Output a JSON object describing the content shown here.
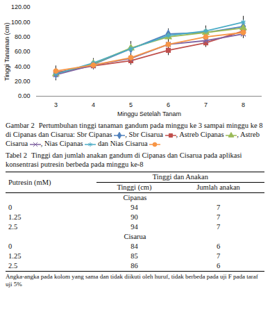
{
  "chart_data": {
    "type": "line",
    "x_label": "Minggu Setelah Tanam",
    "y_label": "Tinggi Tanaman (cm)",
    "categories": [
      3,
      4,
      5,
      6,
      7,
      8
    ],
    "ylim": [
      0,
      120
    ],
    "yticks": [
      {
        "value": 0,
        "label": "0.00"
      },
      {
        "value": 20,
        "label": "20.00"
      },
      {
        "value": 40,
        "label": "40.00"
      },
      {
        "value": 60,
        "label": "60.00"
      },
      {
        "value": 80,
        "label": "80.00"
      },
      {
        "value": 100,
        "label": "100.00"
      },
      {
        "value": 120,
        "label": "120.00"
      }
    ],
    "grid": false,
    "series": [
      {
        "name": "Sbr Cipanas",
        "color": "#4f81bd",
        "marker": "diamond",
        "values": [
          30,
          43,
          64,
          84,
          86,
          94
        ],
        "errors": [
          8,
          6,
          8,
          7,
          7,
          7
        ]
      },
      {
        "name": "Sbr Cisarua",
        "color": "#c0504d",
        "marker": "square",
        "values": [
          32,
          41,
          48,
          62,
          72,
          88
        ],
        "errors": [
          7,
          5,
          6,
          7,
          6,
          6
        ]
      },
      {
        "name": "Astreb Cipanas",
        "color": "#9bbb59",
        "marker": "triangle",
        "values": [
          30,
          44,
          65,
          80,
          86,
          92
        ],
        "errors": [
          7,
          6,
          9,
          8,
          7,
          7
        ]
      },
      {
        "name": "Astreb Cisarua",
        "color": "#8064a2",
        "marker": "times",
        "values": [
          29,
          42,
          51,
          70,
          75,
          84
        ],
        "errors": [
          8,
          6,
          6,
          7,
          6,
          6
        ]
      },
      {
        "name": "Nias Cipanas",
        "color": "#4bacc6",
        "marker": "asterisk",
        "values": [
          30,
          45,
          64,
          82,
          88,
          100
        ],
        "errors": [
          8,
          6,
          8,
          8,
          7,
          8
        ]
      },
      {
        "name": "Nias Cisarua",
        "color": "#f79646",
        "marker": "circle",
        "values": [
          34,
          42,
          52,
          70,
          80,
          86
        ],
        "errors": [
          7,
          5,
          6,
          7,
          6,
          6
        ]
      }
    ]
  },
  "figure_caption": {
    "label": "Gambar 2",
    "text": "Pertumbuhan tinggi tanaman gandum pada minggu ke 3 sampai minggu ke 8 di Cipanas dan Cisarua:",
    "connector": "dan"
  },
  "table": {
    "caption_label": "Tabel 2",
    "caption": "Tinggi dan jumlah anakan gandum di Cipanas dan Cisarua pada aplikasi konsentrasi putresin berbeda pada minggu ke-8",
    "header": [
      "Putresin (mM)",
      "Tinggi dan Anakan"
    ],
    "subheader": [
      "Tinggi (cm)",
      "Jumlah anakan"
    ],
    "groups": [
      {
        "name": "Cipanas",
        "rows": [
          [
            0,
            94,
            7
          ],
          [
            1.25,
            90,
            7
          ],
          [
            2.5,
            94,
            7
          ]
        ]
      },
      {
        "name": "Cisarua",
        "rows": [
          [
            0,
            84,
            6
          ],
          [
            1.25,
            85,
            7
          ],
          [
            2.5,
            86,
            6
          ]
        ]
      }
    ],
    "footnote": "Angka-angka pada kolom yang sama dan tidak diikuti oleh huruf, tidak berbeda pada uji F pada taraf uji 5%"
  }
}
